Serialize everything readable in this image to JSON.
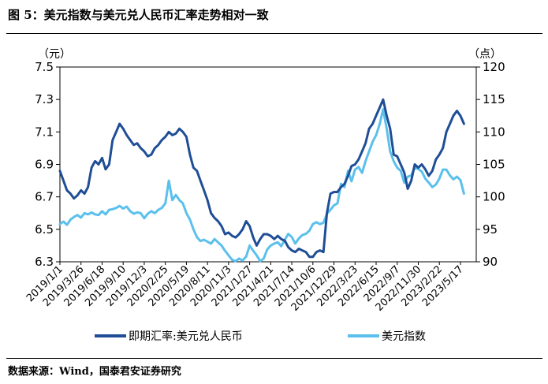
{
  "figure": {
    "title": "图 5：美元指数与美元兑人民币汇率走势相对一致",
    "source": "数据来源：Wind，国泰君安证券研究"
  },
  "chart_data": {
    "type": "line",
    "title": "图 5：美元指数与美元兑人民币汇率走势相对一致",
    "left_axis": {
      "unit": "（元）",
      "ylim": [
        6.3,
        7.5
      ],
      "ticks": [
        "7.5",
        "7.3",
        "7.1",
        "6.9",
        "6.7",
        "6.5",
        "6.3"
      ]
    },
    "right_axis": {
      "unit": "（点）",
      "ylim": [
        90,
        120
      ],
      "ticks": [
        "120",
        "115",
        "110",
        "105",
        "100",
        "95",
        "90"
      ]
    },
    "x_tick_labels": [
      "2019/1/1",
      "2019/3/26",
      "2019/6/18",
      "2019/9/10",
      "2019/12/3",
      "2020/2/25",
      "2020/5/19",
      "2020/8/11",
      "2020/11/3",
      "2021/1/27",
      "2021/4/21",
      "2021/7/14",
      "2021/10/6",
      "2021/12/29",
      "2022/3/23",
      "2022/6/15",
      "2022/9/7",
      "2022/11/30",
      "2023/2/22",
      "2023/5/17"
    ],
    "x_range_weeks": [
      0,
      237
    ],
    "legend_position": "bottom",
    "grid": false,
    "series": [
      {
        "name": "即期汇率:美元兑人民币",
        "axis": "left",
        "color": "#1F4E96",
        "points": [
          [
            0,
            6.86
          ],
          [
            2,
            6.8
          ],
          [
            4,
            6.74
          ],
          [
            6,
            6.72
          ],
          [
            8,
            6.69
          ],
          [
            10,
            6.71
          ],
          [
            12,
            6.74
          ],
          [
            14,
            6.72
          ],
          [
            16,
            6.76
          ],
          [
            18,
            6.88
          ],
          [
            20,
            6.92
          ],
          [
            22,
            6.9
          ],
          [
            24,
            6.94
          ],
          [
            26,
            6.87
          ],
          [
            28,
            6.9
          ],
          [
            30,
            7.05
          ],
          [
            32,
            7.1
          ],
          [
            34,
            7.15
          ],
          [
            36,
            7.12
          ],
          [
            38,
            7.08
          ],
          [
            40,
            7.05
          ],
          [
            42,
            7.02
          ],
          [
            44,
            7.03
          ],
          [
            46,
            7.0
          ],
          [
            48,
            6.98
          ],
          [
            50,
            6.95
          ],
          [
            52,
            6.96
          ],
          [
            54,
            7.0
          ],
          [
            56,
            7.02
          ],
          [
            58,
            7.05
          ],
          [
            60,
            7.07
          ],
          [
            62,
            7.1
          ],
          [
            64,
            7.08
          ],
          [
            66,
            7.09
          ],
          [
            68,
            7.12
          ],
          [
            70,
            7.1
          ],
          [
            72,
            7.07
          ],
          [
            74,
            6.96
          ],
          [
            76,
            6.88
          ],
          [
            78,
            6.86
          ],
          [
            80,
            6.8
          ],
          [
            82,
            6.74
          ],
          [
            84,
            6.68
          ],
          [
            86,
            6.6
          ],
          [
            88,
            6.57
          ],
          [
            90,
            6.55
          ],
          [
            92,
            6.52
          ],
          [
            94,
            6.47
          ],
          [
            96,
            6.48
          ],
          [
            98,
            6.46
          ],
          [
            100,
            6.45
          ],
          [
            102,
            6.47
          ],
          [
            104,
            6.5
          ],
          [
            106,
            6.55
          ],
          [
            108,
            6.52
          ],
          [
            110,
            6.45
          ],
          [
            112,
            6.4
          ],
          [
            114,
            6.44
          ],
          [
            116,
            6.47
          ],
          [
            118,
            6.47
          ],
          [
            120,
            6.46
          ],
          [
            122,
            6.44
          ],
          [
            124,
            6.46
          ],
          [
            126,
            6.44
          ],
          [
            128,
            6.43
          ],
          [
            130,
            6.39
          ],
          [
            132,
            6.37
          ],
          [
            134,
            6.36
          ],
          [
            136,
            6.38
          ],
          [
            138,
            6.37
          ],
          [
            140,
            6.36
          ],
          [
            142,
            6.33
          ],
          [
            144,
            6.33
          ],
          [
            146,
            6.36
          ],
          [
            148,
            6.37
          ],
          [
            150,
            6.36
          ],
          [
            152,
            6.6
          ],
          [
            154,
            6.72
          ],
          [
            156,
            6.73
          ],
          [
            158,
            6.73
          ],
          [
            160,
            6.76
          ],
          [
            162,
            6.78
          ],
          [
            164,
            6.83
          ],
          [
            166,
            6.89
          ],
          [
            168,
            6.9
          ],
          [
            170,
            6.93
          ],
          [
            172,
            6.98
          ],
          [
            174,
            7.03
          ],
          [
            176,
            7.12
          ],
          [
            178,
            7.15
          ],
          [
            180,
            7.2
          ],
          [
            182,
            7.25
          ],
          [
            184,
            7.3
          ],
          [
            186,
            7.2
          ],
          [
            188,
            7.12
          ],
          [
            190,
            6.96
          ],
          [
            192,
            6.95
          ],
          [
            194,
            6.9
          ],
          [
            196,
            6.85
          ],
          [
            198,
            6.75
          ],
          [
            200,
            6.8
          ],
          [
            202,
            6.9
          ],
          [
            204,
            6.88
          ],
          [
            206,
            6.9
          ],
          [
            208,
            6.87
          ],
          [
            210,
            6.83
          ],
          [
            212,
            6.86
          ],
          [
            214,
            6.93
          ],
          [
            216,
            6.96
          ],
          [
            218,
            7.0
          ],
          [
            220,
            7.1
          ],
          [
            222,
            7.15
          ],
          [
            224,
            7.2
          ],
          [
            226,
            7.23
          ],
          [
            228,
            7.2
          ],
          [
            230,
            7.15
          ]
        ]
      },
      {
        "name": "美元指数",
        "axis": "right",
        "color": "#5BC0EB",
        "points": [
          [
            0,
            95.8
          ],
          [
            2,
            96.2
          ],
          [
            4,
            95.7
          ],
          [
            6,
            96.5
          ],
          [
            8,
            96.9
          ],
          [
            10,
            97.2
          ],
          [
            12,
            96.8
          ],
          [
            14,
            97.5
          ],
          [
            16,
            97.3
          ],
          [
            18,
            97.6
          ],
          [
            20,
            97.3
          ],
          [
            22,
            97.2
          ],
          [
            24,
            97.8
          ],
          [
            26,
            97.3
          ],
          [
            28,
            98.0
          ],
          [
            30,
            98.1
          ],
          [
            32,
            98.3
          ],
          [
            34,
            98.6
          ],
          [
            36,
            98.2
          ],
          [
            38,
            98.5
          ],
          [
            40,
            97.8
          ],
          [
            42,
            97.4
          ],
          [
            44,
            97.6
          ],
          [
            46,
            97.5
          ],
          [
            48,
            96.7
          ],
          [
            50,
            97.4
          ],
          [
            52,
            97.8
          ],
          [
            54,
            97.5
          ],
          [
            56,
            98.0
          ],
          [
            58,
            98.3
          ],
          [
            60,
            99.0
          ],
          [
            62,
            102.5
          ],
          [
            64,
            99.5
          ],
          [
            66,
            100.3
          ],
          [
            68,
            99.5
          ],
          [
            70,
            99.0
          ],
          [
            72,
            97.5
          ],
          [
            74,
            96.5
          ],
          [
            76,
            95.0
          ],
          [
            78,
            93.8
          ],
          [
            80,
            93.2
          ],
          [
            82,
            93.4
          ],
          [
            84,
            93.1
          ],
          [
            86,
            92.8
          ],
          [
            88,
            93.5
          ],
          [
            90,
            93.0
          ],
          [
            92,
            92.5
          ],
          [
            94,
            91.7
          ],
          [
            96,
            91.0
          ],
          [
            98,
            90.3
          ],
          [
            100,
            90.1
          ],
          [
            102,
            90.5
          ],
          [
            104,
            90.2
          ],
          [
            106,
            90.8
          ],
          [
            108,
            92.5
          ],
          [
            110,
            91.7
          ],
          [
            112,
            91.0
          ],
          [
            114,
            90.1
          ],
          [
            116,
            90.5
          ],
          [
            118,
            91.9
          ],
          [
            120,
            92.5
          ],
          [
            122,
            92.8
          ],
          [
            124,
            93.0
          ],
          [
            126,
            92.4
          ],
          [
            128,
            93.4
          ],
          [
            130,
            94.3
          ],
          [
            132,
            93.8
          ],
          [
            134,
            92.8
          ],
          [
            136,
            93.6
          ],
          [
            138,
            94.1
          ],
          [
            140,
            94.3
          ],
          [
            142,
            94.8
          ],
          [
            144,
            95.8
          ],
          [
            146,
            96.1
          ],
          [
            148,
            95.8
          ],
          [
            150,
            96.0
          ],
          [
            152,
            97.4
          ],
          [
            154,
            98.0
          ],
          [
            156,
            98.7
          ],
          [
            158,
            99.0
          ],
          [
            160,
            102.0
          ],
          [
            162,
            101.5
          ],
          [
            164,
            104.0
          ],
          [
            166,
            102.4
          ],
          [
            168,
            104.2
          ],
          [
            170,
            104.6
          ],
          [
            172,
            103.7
          ],
          [
            174,
            105.5
          ],
          [
            176,
            107.0
          ],
          [
            178,
            108.5
          ],
          [
            180,
            109.5
          ],
          [
            182,
            111.2
          ],
          [
            184,
            113.5
          ],
          [
            186,
            110.5
          ],
          [
            188,
            107.0
          ],
          [
            190,
            105.5
          ],
          [
            192,
            104.5
          ],
          [
            194,
            104.0
          ],
          [
            196,
            102.2
          ],
          [
            198,
            103.1
          ],
          [
            200,
            103.3
          ],
          [
            202,
            104.5
          ],
          [
            204,
            104.3
          ],
          [
            206,
            103.9
          ],
          [
            208,
            102.8
          ],
          [
            210,
            102.2
          ],
          [
            212,
            101.5
          ],
          [
            214,
            101.9
          ],
          [
            216,
            102.8
          ],
          [
            218,
            104.2
          ],
          [
            220,
            104.2
          ],
          [
            222,
            103.3
          ],
          [
            224,
            102.7
          ],
          [
            226,
            103.1
          ],
          [
            228,
            102.6
          ],
          [
            230,
            100.5
          ]
        ]
      }
    ]
  }
}
